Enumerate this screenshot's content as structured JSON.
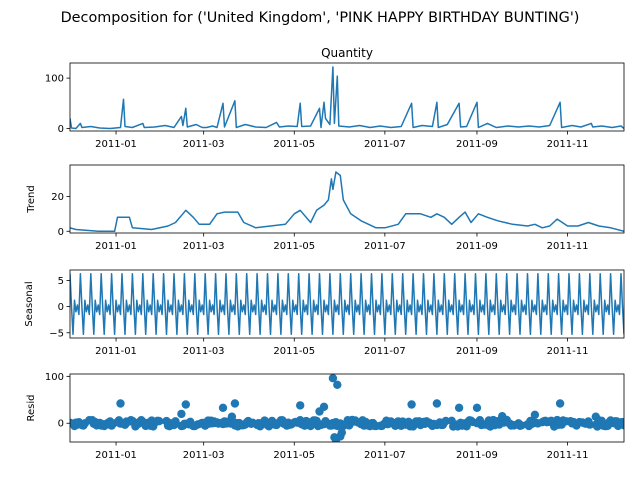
{
  "figure_title": "Decomposition for ('United Kingdom', 'PINK HAPPY BIRTHDAY BUNTING')",
  "chart_data": [
    {
      "type": "line",
      "title": "Quantity",
      "ylabel": "",
      "xlabel": "",
      "x_range": [
        "2010-12-01",
        "2011-12-09"
      ],
      "ylim": [
        -5,
        130
      ],
      "yticks": [
        0,
        100
      ],
      "xtick_labels": [
        "2011-01",
        "2011-03",
        "2011-05",
        "2011-07",
        "2011-09",
        "2011-11"
      ],
      "xtick_dates": [
        "2011-01-01",
        "2011-03-01",
        "2011-05-01",
        "2011-07-01",
        "2011-09-01",
        "2011-11-01"
      ],
      "series": [
        {
          "color": "#1f77b4",
          "points": [
            [
              "2010-12-01",
              20
            ],
            [
              "2010-12-02",
              1
            ],
            [
              "2010-12-05",
              0
            ],
            [
              "2010-12-08",
              10
            ],
            [
              "2010-12-09",
              2
            ],
            [
              "2010-12-15",
              4
            ],
            [
              "2010-12-21",
              1
            ],
            [
              "2010-12-28",
              0
            ],
            [
              "2011-01-04",
              2
            ],
            [
              "2011-01-06",
              58
            ],
            [
              "2011-01-07",
              4
            ],
            [
              "2011-01-12",
              2
            ],
            [
              "2011-01-19",
              10
            ],
            [
              "2011-01-20",
              2
            ],
            [
              "2011-01-27",
              3
            ],
            [
              "2011-02-03",
              6
            ],
            [
              "2011-02-09",
              2
            ],
            [
              "2011-02-14",
              24
            ],
            [
              "2011-02-15",
              6
            ],
            [
              "2011-02-17",
              40
            ],
            [
              "2011-02-18",
              3
            ],
            [
              "2011-02-24",
              8
            ],
            [
              "2011-02-28",
              2
            ],
            [
              "2011-03-03",
              2
            ],
            [
              "2011-03-07",
              5
            ],
            [
              "2011-03-10",
              2
            ],
            [
              "2011-03-14",
              50
            ],
            [
              "2011-03-15",
              3
            ],
            [
              "2011-03-22",
              55
            ],
            [
              "2011-03-23",
              2
            ],
            [
              "2011-03-29",
              8
            ],
            [
              "2011-04-05",
              3
            ],
            [
              "2011-04-12",
              2
            ],
            [
              "2011-04-19",
              12
            ],
            [
              "2011-04-21",
              3
            ],
            [
              "2011-04-27",
              5
            ],
            [
              "2011-05-03",
              4
            ],
            [
              "2011-05-05",
              50
            ],
            [
              "2011-05-06",
              4
            ],
            [
              "2011-05-12",
              5
            ],
            [
              "2011-05-18",
              40
            ],
            [
              "2011-05-19",
              2
            ],
            [
              "2011-05-21",
              52
            ],
            [
              "2011-05-22",
              20
            ],
            [
              "2011-05-25",
              8
            ],
            [
              "2011-05-27",
              122
            ],
            [
              "2011-05-28",
              10
            ],
            [
              "2011-05-30",
              104
            ],
            [
              "2011-05-31",
              5
            ],
            [
              "2011-06-07",
              3
            ],
            [
              "2011-06-14",
              6
            ],
            [
              "2011-06-21",
              2
            ],
            [
              "2011-06-28",
              5
            ],
            [
              "2011-07-05",
              2
            ],
            [
              "2011-07-12",
              4
            ],
            [
              "2011-07-19",
              50
            ],
            [
              "2011-07-20",
              2
            ],
            [
              "2011-07-26",
              6
            ],
            [
              "2011-08-02",
              4
            ],
            [
              "2011-08-05",
              52
            ],
            [
              "2011-08-06",
              2
            ],
            [
              "2011-08-12",
              8
            ],
            [
              "2011-08-20",
              50
            ],
            [
              "2011-08-21",
              3
            ],
            [
              "2011-08-25",
              4
            ],
            [
              "2011-09-01",
              52
            ],
            [
              "2011-09-02",
              2
            ],
            [
              "2011-09-08",
              10
            ],
            [
              "2011-09-14",
              2
            ],
            [
              "2011-09-22",
              5
            ],
            [
              "2011-09-29",
              3
            ],
            [
              "2011-10-06",
              5
            ],
            [
              "2011-10-13",
              3
            ],
            [
              "2011-10-20",
              6
            ],
            [
              "2011-10-27",
              52
            ],
            [
              "2011-10-28",
              2
            ],
            [
              "2011-11-04",
              6
            ],
            [
              "2011-11-10",
              3
            ],
            [
              "2011-11-17",
              10
            ],
            [
              "2011-11-18",
              3
            ],
            [
              "2011-11-24",
              5
            ],
            [
              "2011-12-01",
              2
            ],
            [
              "2011-12-07",
              5
            ],
            [
              "2011-12-09",
              0
            ]
          ]
        }
      ]
    },
    {
      "type": "line",
      "title": "",
      "ylabel": "Trend",
      "xlabel": "",
      "x_range": [
        "2010-12-01",
        "2011-12-09"
      ],
      "ylim": [
        -1,
        38
      ],
      "yticks": [
        0,
        20
      ],
      "xtick_labels": [
        "2011-01",
        "2011-03",
        "2011-05",
        "2011-07",
        "2011-09",
        "2011-11"
      ],
      "xtick_dates": [
        "2011-01-01",
        "2011-03-01",
        "2011-05-01",
        "2011-07-01",
        "2011-09-01",
        "2011-11-01"
      ],
      "series": [
        {
          "color": "#1f77b4",
          "points": [
            [
              "2010-12-01",
              2
            ],
            [
              "2010-12-05",
              1
            ],
            [
              "2010-12-20",
              0
            ],
            [
              "2010-12-31",
              0
            ],
            [
              "2011-01-02",
              8
            ],
            [
              "2011-01-10",
              8
            ],
            [
              "2011-01-12",
              2
            ],
            [
              "2011-01-25",
              1
            ],
            [
              "2011-02-05",
              3
            ],
            [
              "2011-02-10",
              5
            ],
            [
              "2011-02-15",
              10
            ],
            [
              "2011-02-17",
              12
            ],
            [
              "2011-02-22",
              8
            ],
            [
              "2011-02-26",
              4
            ],
            [
              "2011-03-05",
              4
            ],
            [
              "2011-03-10",
              10
            ],
            [
              "2011-03-15",
              11
            ],
            [
              "2011-03-24",
              11
            ],
            [
              "2011-03-28",
              5
            ],
            [
              "2011-04-05",
              2
            ],
            [
              "2011-04-15",
              3
            ],
            [
              "2011-04-25",
              4
            ],
            [
              "2011-05-01",
              10
            ],
            [
              "2011-05-05",
              12
            ],
            [
              "2011-05-12",
              5
            ],
            [
              "2011-05-16",
              12
            ],
            [
              "2011-05-21",
              15
            ],
            [
              "2011-05-24",
              18
            ],
            [
              "2011-05-26",
              30
            ],
            [
              "2011-05-27",
              24
            ],
            [
              "2011-05-29",
              34
            ],
            [
              "2011-06-01",
              32
            ],
            [
              "2011-06-03",
              18
            ],
            [
              "2011-06-08",
              10
            ],
            [
              "2011-06-15",
              6
            ],
            [
              "2011-06-25",
              2
            ],
            [
              "2011-07-01",
              2
            ],
            [
              "2011-07-10",
              4
            ],
            [
              "2011-07-15",
              10
            ],
            [
              "2011-07-25",
              10
            ],
            [
              "2011-08-01",
              8
            ],
            [
              "2011-08-05",
              10
            ],
            [
              "2011-08-10",
              8
            ],
            [
              "2011-08-15",
              4
            ],
            [
              "2011-08-20",
              8
            ],
            [
              "2011-08-24",
              11
            ],
            [
              "2011-08-28",
              5
            ],
            [
              "2011-09-02",
              10
            ],
            [
              "2011-09-08",
              8
            ],
            [
              "2011-09-15",
              6
            ],
            [
              "2011-09-25",
              4
            ],
            [
              "2011-10-05",
              3
            ],
            [
              "2011-10-10",
              4
            ],
            [
              "2011-10-15",
              2
            ],
            [
              "2011-10-20",
              3
            ],
            [
              "2011-10-25",
              7
            ],
            [
              "2011-11-01",
              3
            ],
            [
              "2011-11-08",
              3
            ],
            [
              "2011-11-15",
              5
            ],
            [
              "2011-11-22",
              3
            ],
            [
              "2011-11-30",
              2
            ],
            [
              "2011-12-09",
              0
            ]
          ]
        }
      ]
    },
    {
      "type": "line",
      "title": "",
      "ylabel": "Seasonal",
      "xlabel": "",
      "x_range": [
        "2010-12-01",
        "2011-12-09"
      ],
      "ylim": [
        -6,
        7
      ],
      "yticks": [
        -5,
        0,
        5
      ],
      "xtick_labels": [
        "2011-01",
        "2011-03",
        "2011-05",
        "2011-07",
        "2011-09",
        "2011-11"
      ],
      "xtick_dates": [
        "2011-01-01",
        "2011-03-01",
        "2011-05-01",
        "2011-07-01",
        "2011-09-01",
        "2011-11-01"
      ],
      "period_days": 7,
      "weekly_pattern": [
        6.3,
        0,
        -5.3,
        1.2,
        -1,
        0.3,
        -1.5
      ],
      "series": [
        {
          "color": "#1f77b4"
        }
      ]
    },
    {
      "type": "scatter",
      "title": "",
      "ylabel": "Resid",
      "xlabel": "",
      "x_range": [
        "2010-12-01",
        "2011-12-09"
      ],
      "ylim": [
        -40,
        105
      ],
      "yticks": [
        0,
        100
      ],
      "xtick_labels": [
        "2011-01",
        "2011-03",
        "2011-05",
        "2011-07",
        "2011-09",
        "2011-11"
      ],
      "xtick_dates": [
        "2011-01-01",
        "2011-03-01",
        "2011-05-01",
        "2011-07-01",
        "2011-09-01",
        "2011-11-01"
      ],
      "baseline": 0,
      "series": [
        {
          "color": "#1f77b4",
          "points": [
            [
              "2011-01-04",
              42
            ],
            [
              "2011-02-14",
              20
            ],
            [
              "2011-02-17",
              40
            ],
            [
              "2011-03-14",
              33
            ],
            [
              "2011-03-20",
              14
            ],
            [
              "2011-03-22",
              42
            ],
            [
              "2011-05-05",
              38
            ],
            [
              "2011-05-18",
              25
            ],
            [
              "2011-05-21",
              35
            ],
            [
              "2011-05-26",
              -5
            ],
            [
              "2011-05-27",
              96
            ],
            [
              "2011-05-28",
              -30
            ],
            [
              "2011-05-29",
              -35
            ],
            [
              "2011-05-30",
              82
            ],
            [
              "2011-06-01",
              -28
            ],
            [
              "2011-06-02",
              -20
            ],
            [
              "2011-07-19",
              40
            ],
            [
              "2011-08-05",
              42
            ],
            [
              "2011-08-20",
              33
            ],
            [
              "2011-09-01",
              33
            ],
            [
              "2011-09-18",
              15
            ],
            [
              "2011-10-10",
              18
            ],
            [
              "2011-10-27",
              42
            ],
            [
              "2011-11-20",
              14
            ]
          ]
        }
      ]
    }
  ]
}
